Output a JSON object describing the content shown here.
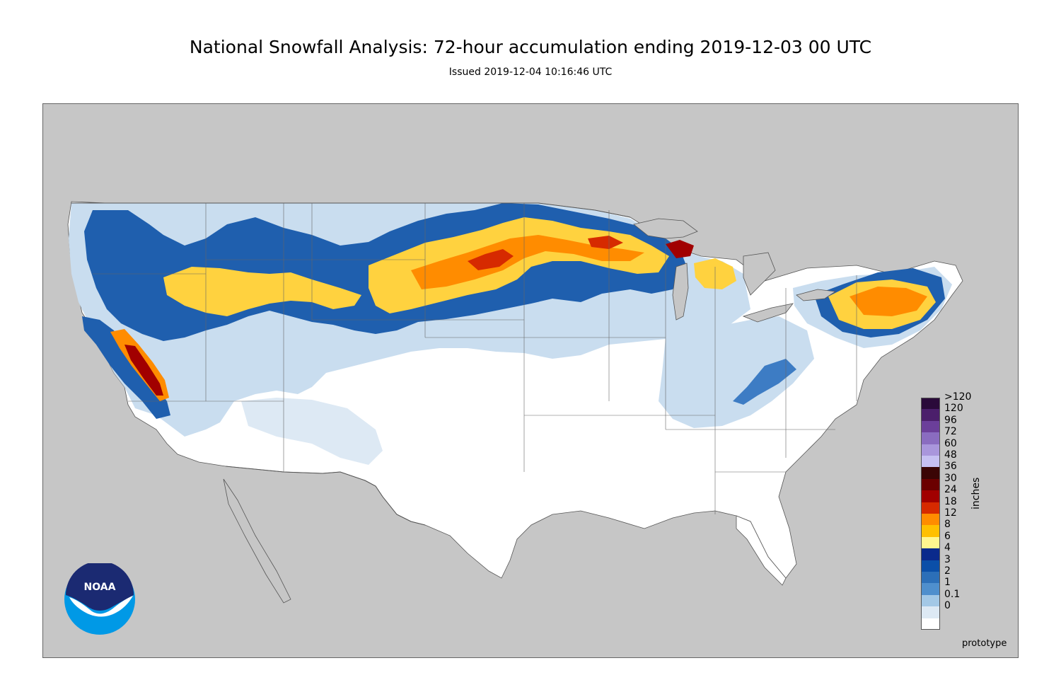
{
  "header": {
    "title": "National Snowfall Analysis: 72-hour accumulation ending 2019-12-03 00 UTC",
    "subtitle": "Issued 2019-12-04 10:16:46 UTC"
  },
  "legend": {
    "unit": "inches",
    "entries": [
      {
        "label": ">120",
        "color": "#2a0a3a"
      },
      {
        "label": "120",
        "color": "#4b1f6b"
      },
      {
        "label": "96",
        "color": "#6b3f9a"
      },
      {
        "label": "72",
        "color": "#8a6cc0"
      },
      {
        "label": "60",
        "color": "#a996dc"
      },
      {
        "label": "48",
        "color": "#c6c0f2"
      },
      {
        "label": "36",
        "color": "#3a0505"
      },
      {
        "label": "30",
        "color": "#6b0000"
      },
      {
        "label": "24",
        "color": "#a10000"
      },
      {
        "label": "18",
        "color": "#d62a00"
      },
      {
        "label": "12",
        "color": "#ff8c00"
      },
      {
        "label": "8",
        "color": "#ffc000"
      },
      {
        "label": "6",
        "color": "#fff68f"
      },
      {
        "label": "4",
        "color": "#0a2a8c"
      },
      {
        "label": "3",
        "color": "#0b4fa8"
      },
      {
        "label": "2",
        "color": "#2c6fb8"
      },
      {
        "label": "1",
        "color": "#4f8fcd"
      },
      {
        "label": "0.1",
        "color": "#a3c8e6"
      },
      {
        "label": "0",
        "color": "#dde9f4"
      },
      {
        "label": "",
        "color": "#ffffff"
      }
    ]
  },
  "footnote": "prototype",
  "logo": {
    "text": "NOAA"
  },
  "colors": {
    "background_land": "#c6c6c6",
    "no_snow": "#ffffff",
    "light_snow": "#c9ddef",
    "moderate_snow": "#1f5fae",
    "heavy_snow": "#ffd23f",
    "very_heavy_snow": "#ff8c00",
    "extreme_snow": "#a10000"
  }
}
